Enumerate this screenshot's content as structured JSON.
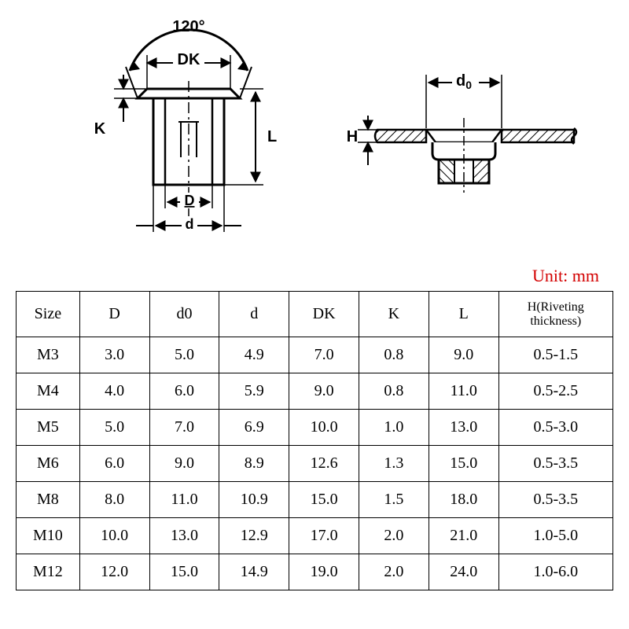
{
  "diagram": {
    "angle_label": "120°",
    "labels": {
      "DK": "DK",
      "K": "K",
      "L": "L",
      "D": "D",
      "d": "d",
      "d0": "d₀",
      "H": "H"
    },
    "stroke_color": "#000000",
    "stroke_width": 2,
    "background": "#ffffff",
    "font_family": "Times New Roman, serif",
    "label_fontsize": 20
  },
  "table": {
    "unit_label": "Unit: mm",
    "unit_color": "#d30000",
    "border_color": "#000000",
    "text_color": "#000000",
    "columns": [
      "Size",
      "D",
      "d0",
      "d",
      "DK",
      "K",
      "L",
      "H(Riveting thickness)"
    ],
    "rows": [
      [
        "M3",
        "3.0",
        "5.0",
        "4.9",
        "7.0",
        "0.8",
        "9.0",
        "0.5-1.5"
      ],
      [
        "M4",
        "4.0",
        "6.0",
        "5.9",
        "9.0",
        "0.8",
        "11.0",
        "0.5-2.5"
      ],
      [
        "M5",
        "5.0",
        "7.0",
        "6.9",
        "10.0",
        "1.0",
        "13.0",
        "0.5-3.0"
      ],
      [
        "M6",
        "6.0",
        "9.0",
        "8.9",
        "12.6",
        "1.3",
        "15.0",
        "0.5-3.5"
      ],
      [
        "M8",
        "8.0",
        "11.0",
        "10.9",
        "15.0",
        "1.5",
        "18.0",
        "0.5-3.5"
      ],
      [
        "M10",
        "10.0",
        "13.0",
        "12.9",
        "17.0",
        "2.0",
        "21.0",
        "1.0-5.0"
      ],
      [
        "M12",
        "12.0",
        "15.0",
        "14.9",
        "19.0",
        "2.0",
        "24.0",
        "1.0-6.0"
      ]
    ]
  }
}
